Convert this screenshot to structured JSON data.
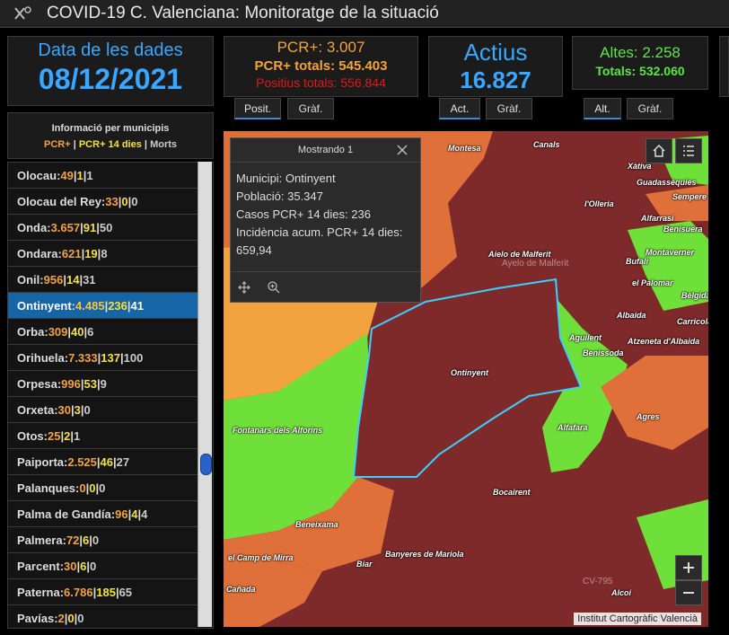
{
  "app": {
    "title": "COVID-19 C. Valenciana: Monitoratge de la situació"
  },
  "cards": {
    "date": {
      "label": "Data de les dades",
      "value": "08/12/2021",
      "color": "#3aa7ff"
    },
    "pcr": {
      "label": "PCR+: 3.007",
      "total": "PCR+ totals: 545.403",
      "positive": "Positius totals: 556.844",
      "color_main": "#f2a43a",
      "color_pos": "#e01919"
    },
    "active": {
      "label": "Actius",
      "value": "16.827",
      "color": "#3aa7ff"
    },
    "discharged": {
      "label": "Altes: 2.258",
      "total": "Totals: 532.060",
      "color": "#5ee34a"
    }
  },
  "tabs": {
    "pcr": [
      "Posit.",
      "Gràf."
    ],
    "active": [
      "Act.",
      "Gràf."
    ],
    "discharged": [
      "Alt.",
      "Gràf."
    ]
  },
  "municipalities": {
    "header": "Informació per municipis",
    "legend": {
      "pcr": "PCR+",
      "pcr14": "PCR+ 14 dies",
      "deaths": "Morts"
    },
    "items": [
      {
        "name": "Olocau",
        "pcr": "49",
        "pcr14": "1",
        "deaths": "1"
      },
      {
        "name": "Olocau del Rey",
        "pcr": "33",
        "pcr14": "0",
        "deaths": "0"
      },
      {
        "name": "Onda",
        "pcr": "3.657",
        "pcr14": "91",
        "deaths": "50"
      },
      {
        "name": "Ondara",
        "pcr": "621",
        "pcr14": "19",
        "deaths": "8"
      },
      {
        "name": "Onil",
        "pcr": "956",
        "pcr14": "14",
        "deaths": "31"
      },
      {
        "name": "Ontinyent",
        "pcr": "4.485",
        "pcr14": "236",
        "deaths": "41",
        "selected": true
      },
      {
        "name": "Orba",
        "pcr": "309",
        "pcr14": "40",
        "deaths": "6"
      },
      {
        "name": "Orihuela",
        "pcr": "7.333",
        "pcr14": "137",
        "deaths": "100"
      },
      {
        "name": "Orpesa",
        "pcr": "996",
        "pcr14": "53",
        "deaths": "9"
      },
      {
        "name": "Orxeta",
        "pcr": "30",
        "pcr14": "3",
        "deaths": "0"
      },
      {
        "name": "Otos",
        "pcr": "25",
        "pcr14": "2",
        "deaths": "1"
      },
      {
        "name": "Paiporta",
        "pcr": "2.525",
        "pcr14": "46",
        "deaths": "27"
      },
      {
        "name": "Palanques",
        "pcr": "0",
        "pcr14": "0",
        "deaths": "0"
      },
      {
        "name": "Palma de Gandía",
        "pcr": "96",
        "pcr14": "4",
        "deaths": "4"
      },
      {
        "name": "Palmera",
        "pcr": "72",
        "pcr14": "6",
        "deaths": "0"
      },
      {
        "name": "Parcent",
        "pcr": "30",
        "pcr14": "6",
        "deaths": "0"
      },
      {
        "name": "Paterna",
        "pcr": "6.786",
        "pcr14": "185",
        "deaths": "65"
      },
      {
        "name": "Pavías",
        "pcr": "2",
        "pcr14": "0",
        "deaths": "0"
      }
    ]
  },
  "popup": {
    "title": "Mostrando 1",
    "lines": [
      "Municipi: Ontinyent",
      "Població: 35.347",
      "Casos PCR+ 14 dies: 236",
      "Incidència acum. PCR+ 14 dies: 659,94"
    ]
  },
  "map": {
    "attribution": "Institut Cartogràfic Valencià",
    "colors": {
      "dark_red": "#7e2a2a",
      "red": "#963030",
      "orange": "#e0703a",
      "light_orange": "#f2a23e",
      "green": "#6fe03a",
      "highlight": "#3ad0ff"
    },
    "labels": [
      "Montesa",
      "Canals",
      "Xàtiva",
      "l'Olleria",
      "Guadassèquies",
      "Sempere",
      "Alfarrasí",
      "Benisuera",
      "Aielo de Malferit",
      "Montaverner",
      "Bufali",
      "el Palomar",
      "Bèlgida",
      "Albaida",
      "Carricola",
      "Aguilent",
      "Atzeneta d'Albaida",
      "Benissoda",
      "Ontinyent",
      "Fontanars dels Alforins",
      "Agres",
      "Alfafara",
      "Bocairent",
      "Beneixama",
      "el Camp de Mirra",
      "Biar",
      "Banyeres de Mariola",
      "Cañada",
      "Alcoi",
      "CV-795",
      "Ayelo de Malferit"
    ]
  }
}
